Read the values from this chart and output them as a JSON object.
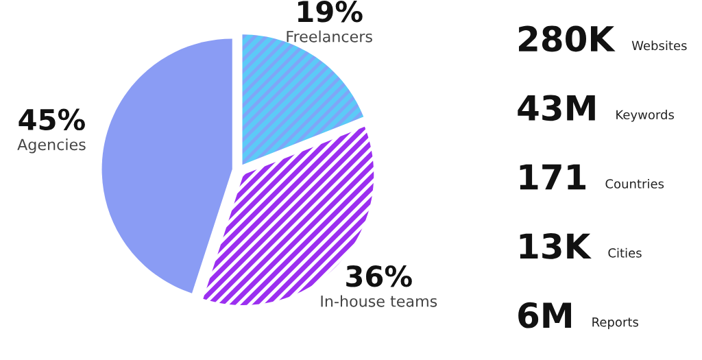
{
  "chart_data": [
    {
      "type": "pie",
      "categories": [
        "Freelancers",
        "In-house teams",
        "Agencies"
      ],
      "values": [
        19,
        36,
        45
      ],
      "colors": [
        "#7fa6f7",
        "#9b2ff0",
        "#8a9cf4"
      ],
      "value_labels": [
        "19%",
        "36%",
        "45%"
      ]
    },
    {
      "type": "other",
      "annotations": [
        "280K",
        "Websites",
        "43M",
        "Keywords",
        "171",
        "Countries",
        "13K",
        "Cities",
        "6M",
        "Reports"
      ]
    }
  ]
}
